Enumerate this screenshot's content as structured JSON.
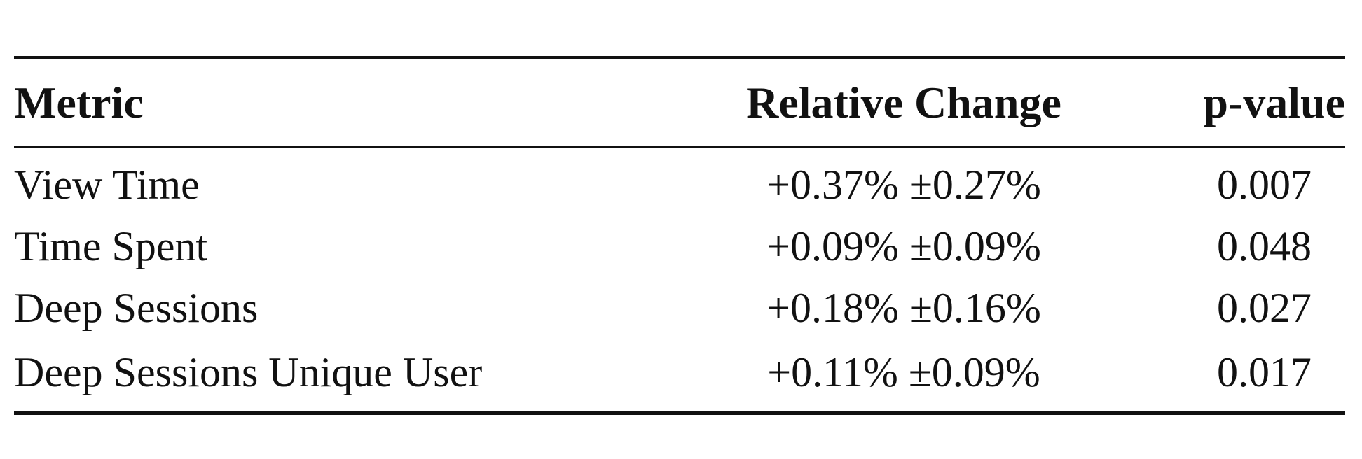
{
  "table": {
    "headers": {
      "metric": "Metric",
      "relative_change": "Relative Change",
      "p_value": "p-value"
    },
    "rows": [
      {
        "metric": "View Time",
        "relative_change": "+0.37% ±0.27%",
        "p_value": "0.007"
      },
      {
        "metric": "Time Spent",
        "relative_change": "+0.09% ±0.09%",
        "p_value": "0.048"
      },
      {
        "metric": "Deep Sessions",
        "relative_change": "+0.18% ±0.16%",
        "p_value": "0.027"
      },
      {
        "metric": "Deep Sessions Unique User",
        "relative_change": "+0.11% ±0.09%",
        "p_value": "0.017"
      }
    ]
  }
}
